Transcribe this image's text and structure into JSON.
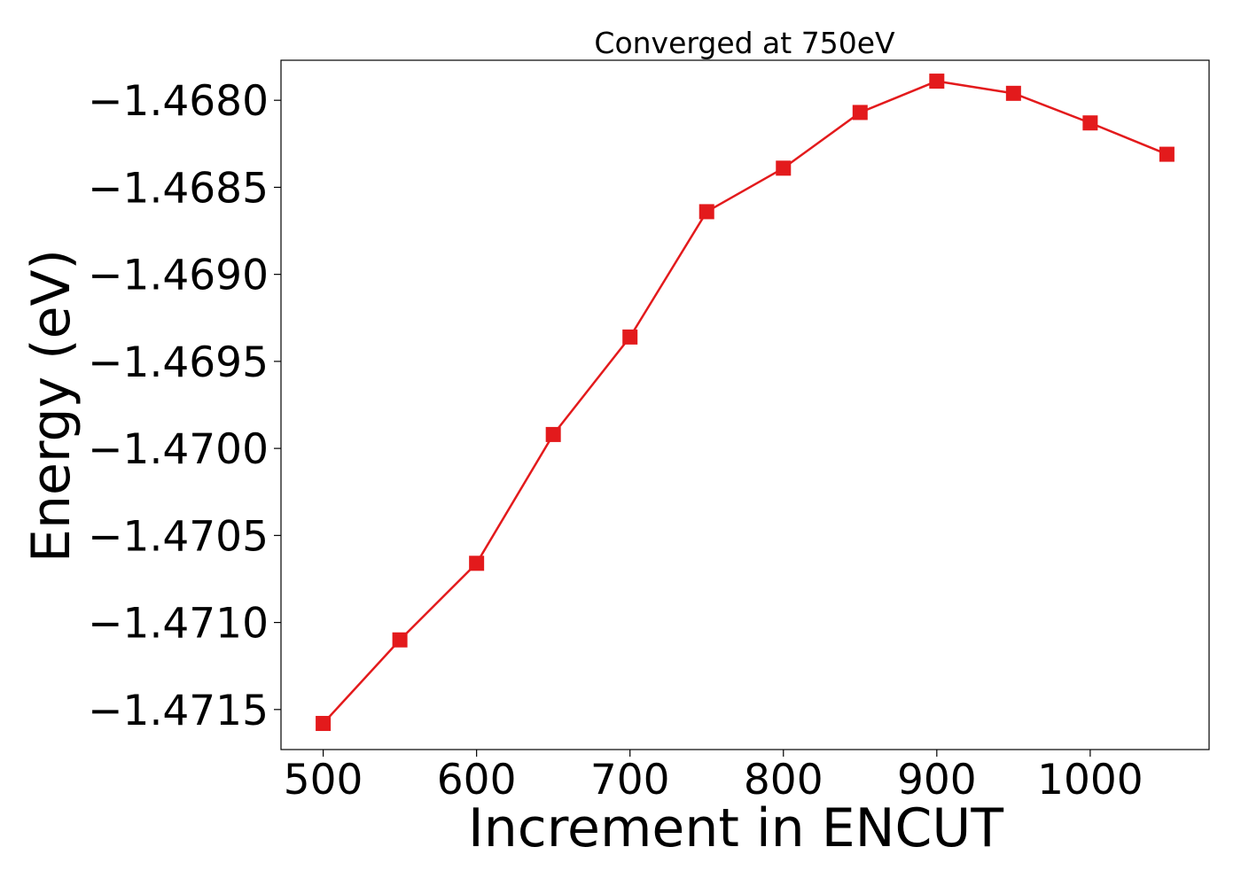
{
  "chart_data": {
    "type": "line",
    "title": "Converged at 750eV",
    "xlabel": "Increment in ENCUT",
    "ylabel": "Energy (eV)",
    "xlim": [
      472.5,
      1077.5
    ],
    "ylim": [
      -1.47173,
      -1.46777
    ],
    "xticks": [
      500,
      600,
      700,
      800,
      900,
      1000
    ],
    "xtick_labels": [
      "500",
      "600",
      "700",
      "800",
      "900",
      "1000"
    ],
    "yticks": [
      -1.4715,
      -1.471,
      -1.4705,
      -1.47,
      -1.4695,
      -1.469,
      -1.4685,
      -1.468
    ],
    "ytick_labels": [
      "−1.4715",
      "−1.4710",
      "−1.4705",
      "−1.4700",
      "−1.4695",
      "−1.4690",
      "−1.4685",
      "−1.4680"
    ],
    "grid": false,
    "series": [
      {
        "color": "#e31a1c",
        "marker": "square",
        "x": [
          500,
          550,
          600,
          650,
          700,
          750,
          800,
          850,
          900,
          950,
          1000,
          1050
        ],
        "y": [
          -1.47158,
          -1.4711,
          -1.47066,
          -1.46992,
          -1.46936,
          -1.46864,
          -1.46839,
          -1.46807,
          -1.46789,
          -1.46796,
          -1.46813,
          -1.46831
        ]
      }
    ]
  }
}
